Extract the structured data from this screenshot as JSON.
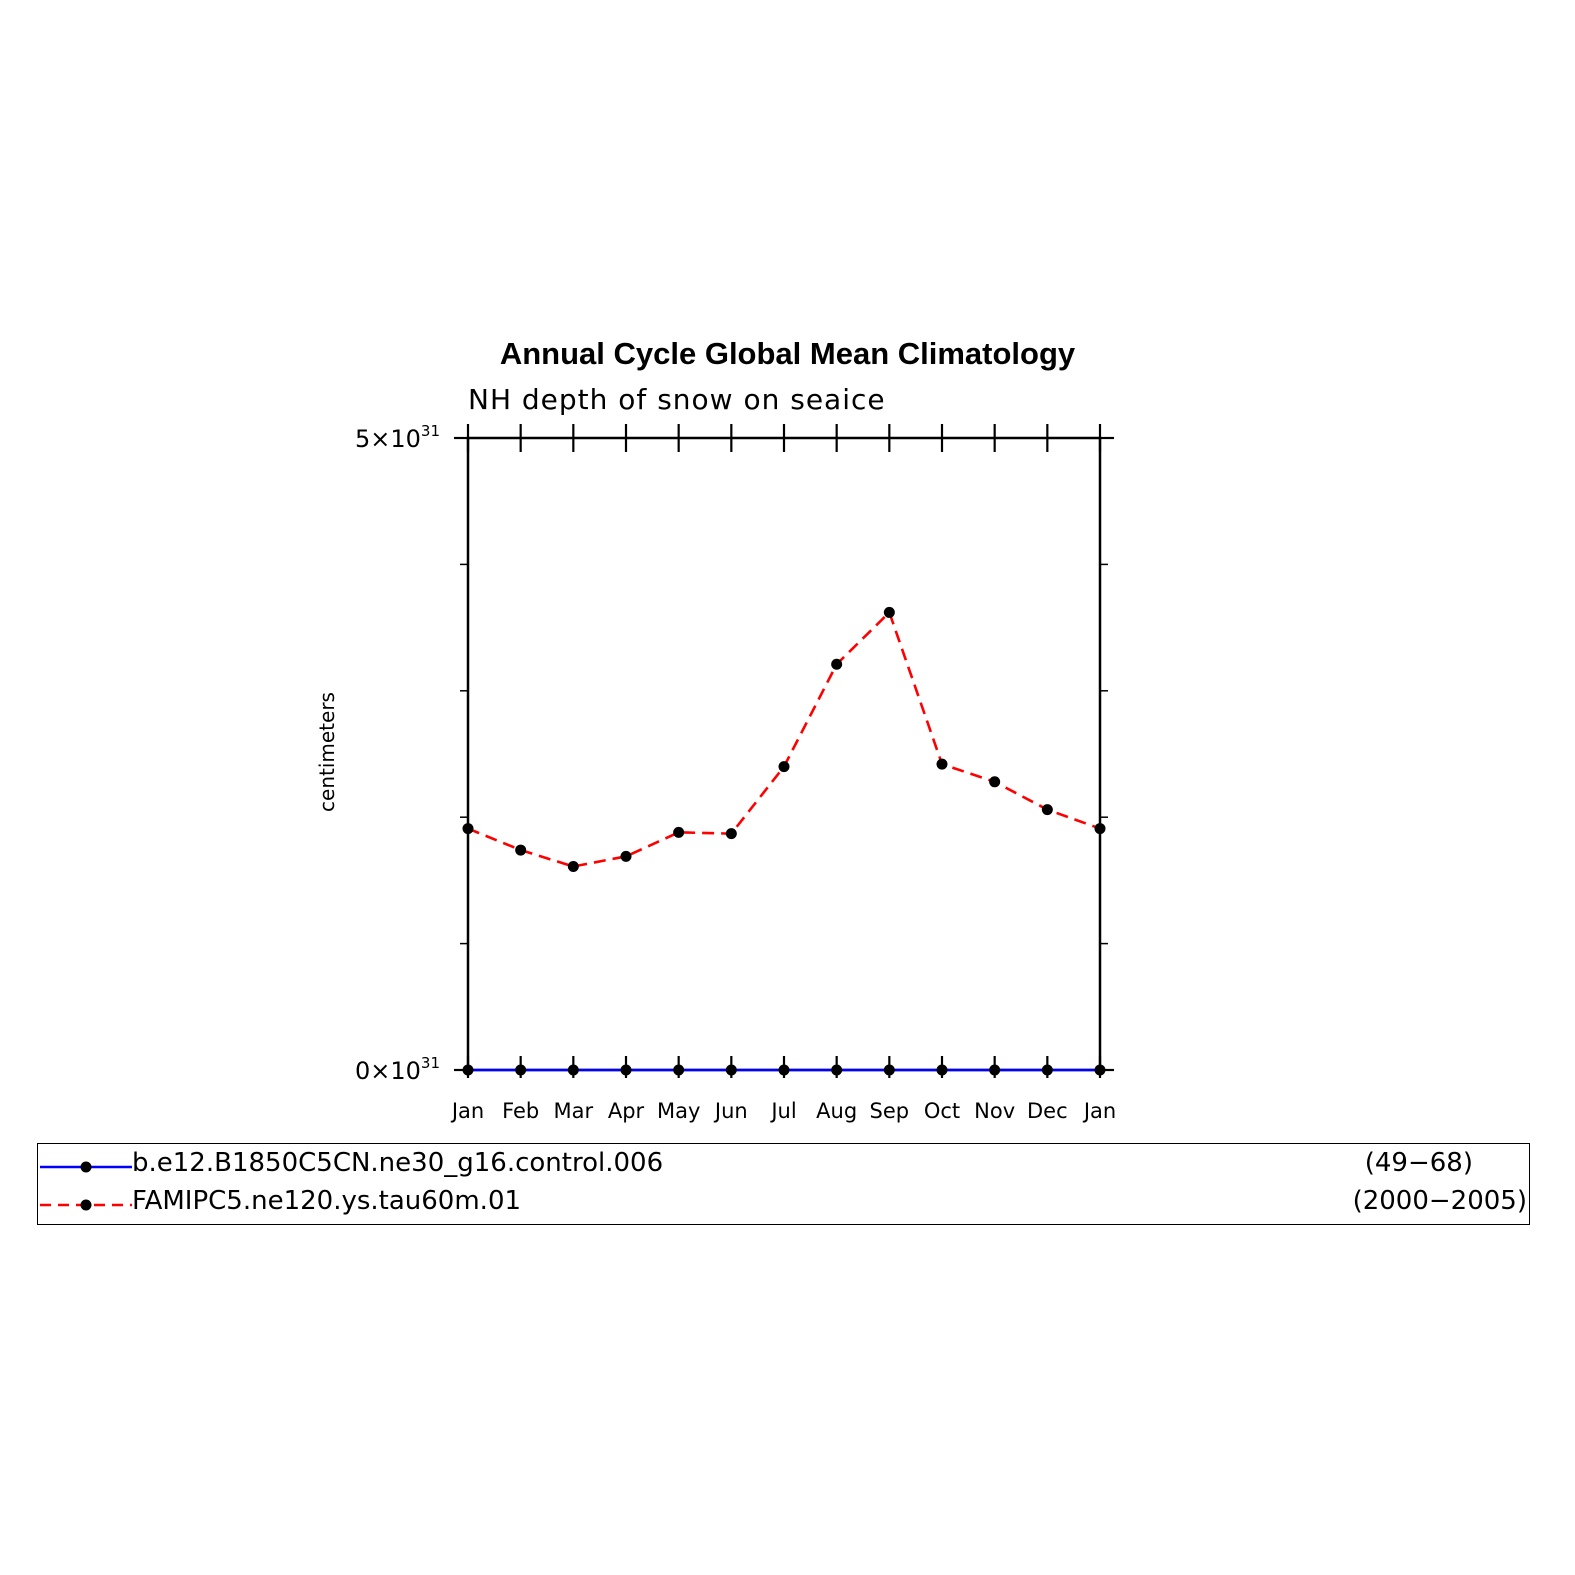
{
  "chart_data": {
    "type": "line",
    "title": "Annual Cycle Global Mean Climatology",
    "subtitle": "NH depth of snow on seaice",
    "ylabel": "centimeters",
    "xlabel": "",
    "categories": [
      "Jan",
      "Feb",
      "Mar",
      "Apr",
      "May",
      "Jun",
      "Jul",
      "Aug",
      "Sep",
      "Oct",
      "Nov",
      "Dec",
      "Jan"
    ],
    "ylim": [
      0,
      5e+31
    ],
    "y_tick_labels": [
      {
        "mantissa": "0",
        "exponent": "31",
        "value": 0
      },
      {
        "mantissa": "5",
        "exponent": "31",
        "value": 5e+31
      }
    ],
    "y_minor_ticks": [
      1e+31,
      2e+31,
      3e+31,
      4e+31
    ],
    "series": [
      {
        "name": "b.e12.B1850C5CN.ne30_g16.control.006",
        "years": "(49−68)",
        "color": "#0000ff",
        "dash": "solid",
        "values": [
          0,
          0,
          0,
          0,
          0,
          0,
          0,
          0,
          0,
          0,
          0,
          0,
          0
        ]
      },
      {
        "name": "FAMIPC5.ne120.ys.tau60m.01",
        "years": "(2000−2005)",
        "color": "#ff0000",
        "dash": "dashed",
        "values": [
          1.91e+31,
          1.74e+31,
          1.61e+31,
          1.69e+31,
          1.88e+31,
          1.87e+31,
          2.4e+31,
          3.21e+31,
          3.62e+31,
          2.42e+31,
          2.28e+31,
          2.06e+31,
          1.91e+31
        ]
      }
    ],
    "legend_position": "bottom",
    "grid": false
  }
}
